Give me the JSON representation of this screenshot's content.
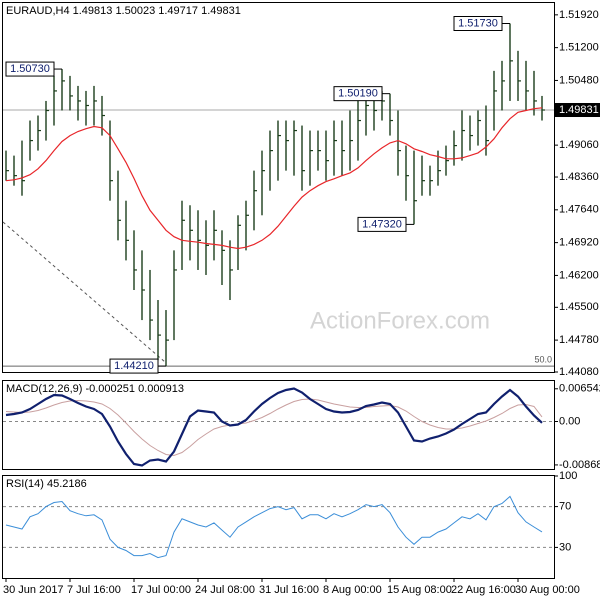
{
  "chart_data": [
    {
      "type": "ohlc",
      "title": "EURAUD,H4 1.49813 1.50023 1.49717 1.49831",
      "watermark": "ActionForex.com",
      "color": "#1b3d1b",
      "high": [
        1.4894,
        1.4883,
        1.4916,
        1.496,
        1.4971,
        1.5003,
        1.5058,
        1.5073,
        1.5058,
        1.5036,
        1.5025,
        1.5036,
        1.5014,
        1.496,
        1.485,
        1.4784,
        1.4719,
        1.4675,
        1.4632,
        1.4566,
        1.4544,
        1.4675,
        1.4784,
        1.4774,
        1.4763,
        1.4741,
        1.4763,
        1.4719,
        1.4697,
        1.4752,
        1.4784,
        1.485,
        1.4894,
        1.4938,
        1.496,
        1.496,
        1.496,
        1.4949,
        1.4938,
        1.4938,
        1.4938,
        1.496,
        1.496,
        1.4982,
        1.5003,
        1.5014,
        1.5014,
        1.5025,
        1.5019,
        1.4982,
        1.4905,
        1.4894,
        1.4883,
        1.4861,
        1.4894,
        1.4905,
        1.4938,
        1.4982,
        1.4971,
        1.4982,
        1.4993,
        1.5069,
        1.5091,
        1.5173,
        1.5113,
        1.5091,
        1.5069,
        1.5014
      ],
      "low": [
        1.4828,
        1.4817,
        1.4795,
        1.4872,
        1.4894,
        1.4916,
        1.4949,
        1.4982,
        1.4982,
        1.496,
        1.4949,
        1.4949,
        1.4927,
        1.4784,
        1.4697,
        1.4653,
        1.4588,
        1.4522,
        1.4478,
        1.4434,
        1.4421,
        1.4478,
        1.4632,
        1.4653,
        1.4632,
        1.4621,
        1.4653,
        1.4599,
        1.4566,
        1.4632,
        1.4675,
        1.4719,
        1.4752,
        1.4806,
        1.4828,
        1.485,
        1.4839,
        1.4806,
        1.4817,
        1.485,
        1.4828,
        1.4839,
        1.4839,
        1.485,
        1.4872,
        1.4927,
        1.4938,
        1.496,
        1.4927,
        1.4839,
        1.4784,
        1.4732,
        1.4795,
        1.4795,
        1.4817,
        1.4839,
        1.4861,
        1.4872,
        1.4894,
        1.4905,
        1.4883,
        1.4938,
        1.4982,
        1.5003,
        1.5003,
        1.4982,
        1.4971,
        1.496
      ],
      "close": [
        1.485,
        1.4839,
        1.4828,
        1.4916,
        1.4938,
        1.4982,
        1.5025,
        1.5047,
        1.5014,
        1.5003,
        1.4993,
        1.5003,
        1.4971,
        1.4828,
        1.4741,
        1.4697,
        1.4632,
        1.4588,
        1.4522,
        1.4489,
        1.4478,
        1.4632,
        1.4741,
        1.4719,
        1.4697,
        1.4686,
        1.4719,
        1.4675,
        1.4632,
        1.473,
        1.4752,
        1.4806,
        1.485,
        1.4894,
        1.4927,
        1.4916,
        1.4938,
        1.485,
        1.4894,
        1.4894,
        1.4872,
        1.4916,
        1.4894,
        1.4916,
        1.496,
        1.4993,
        1.4982,
        1.5003,
        1.496,
        1.4894,
        1.4839,
        1.4784,
        1.4828,
        1.4828,
        1.485,
        1.4872,
        1.4905,
        1.4938,
        1.4927,
        1.496,
        1.4916,
        1.5025,
        1.5047,
        1.5091,
        1.5047,
        1.5025,
        1.5003,
        1.49831
      ],
      "ma": {
        "color": "#e8262a",
        "values": [
          1.4828,
          1.483,
          1.4834,
          1.4841,
          1.4854,
          1.4872,
          1.4894,
          1.4914,
          1.4927,
          1.4936,
          1.4942,
          1.4947,
          1.4944,
          1.4927,
          1.4898,
          1.4868,
          1.4833,
          1.4795,
          1.4763,
          1.4741,
          1.4719,
          1.4705,
          1.4697,
          1.4695,
          1.4693,
          1.469,
          1.4688,
          1.4686,
          1.4682,
          1.4679,
          1.4682,
          1.4688,
          1.4697,
          1.471,
          1.4728,
          1.475,
          1.4772,
          1.4792,
          1.4806,
          1.4817,
          1.4826,
          1.4832,
          1.4839,
          1.4845,
          1.4856,
          1.4872,
          1.4887,
          1.49,
          1.4911,
          1.4916,
          1.4909,
          1.4898,
          1.4892,
          1.4885,
          1.4881,
          1.4876,
          1.4876,
          1.4878,
          1.4883,
          1.4889,
          1.4902,
          1.492,
          1.4944,
          1.4964,
          1.4978,
          1.4982,
          1.4986,
          1.4988
        ]
      },
      "last_price": 1.49831,
      "annotations": [
        {
          "label": "1.50730",
          "value": 1.5073
        },
        {
          "label": "1.44210",
          "value": 1.4421
        },
        {
          "label": "1.50190",
          "value": 1.5019
        },
        {
          "label": "1.47320",
          "value": 1.4732
        },
        {
          "label": "1.51730",
          "value": 1.5173
        }
      ],
      "fib": {
        "label": "50.0",
        "value": 1.4421
      },
      "ylim": [
        1.4408,
        1.5218
      ],
      "yticks": [
        {
          "value": 1.5192,
          "label": "1.51920"
        },
        {
          "value": 1.512,
          "label": "1.51200"
        },
        {
          "value": 1.5048,
          "label": "1.50480"
        },
        {
          "value": 1.4906,
          "label": "1.49060"
        },
        {
          "value": 1.4836,
          "label": "1.48360"
        },
        {
          "value": 1.4764,
          "label": "1.47640"
        },
        {
          "value": 1.4692,
          "label": "1.46920"
        },
        {
          "value": 1.462,
          "label": "1.46200"
        },
        {
          "value": 1.455,
          "label": "1.45500"
        },
        {
          "value": 1.4478,
          "label": "1.44780"
        },
        {
          "value": 1.4408,
          "label": "1.44080"
        }
      ]
    },
    {
      "type": "macd",
      "label": "MACD(12,26,9) -0.000251 0.000913",
      "macd": {
        "color": "#10206e",
        "values": [
          0.0013,
          0.0015,
          0.0018,
          0.0025,
          0.0035,
          0.0045,
          0.0053,
          0.0052,
          0.0045,
          0.0037,
          0.003,
          0.0025,
          0.0015,
          -0.001,
          -0.004,
          -0.0065,
          -0.0085,
          -0.0088,
          -0.0078,
          -0.0076,
          -0.008,
          -0.006,
          -0.0025,
          0.001,
          0.0022,
          0.002,
          0.0018,
          0.0,
          -0.0008,
          -0.0006,
          0.0003,
          0.002,
          0.0035,
          0.0047,
          0.0057,
          0.0063,
          0.0066,
          0.0058,
          0.0045,
          0.0035,
          0.0025,
          0.002,
          0.0018,
          0.0019,
          0.0023,
          0.0031,
          0.0034,
          0.0038,
          0.0035,
          0.0018,
          -0.001,
          -0.0038,
          -0.004,
          -0.0034,
          -0.003,
          -0.0024,
          -0.0016,
          -0.0005,
          0.0005,
          0.0015,
          0.0018,
          0.0035,
          0.005,
          0.0063,
          0.005,
          0.003,
          0.0012,
          -0.000251
        ]
      },
      "signal": {
        "color": "#c9a0a0",
        "values": [
          0.002,
          0.0019,
          0.0018,
          0.0019,
          0.0022,
          0.0027,
          0.0033,
          0.0038,
          0.0041,
          0.0042,
          0.0041,
          0.0039,
          0.0035,
          0.0026,
          0.0013,
          -0.0003,
          -0.002,
          -0.0035,
          -0.0048,
          -0.0058,
          -0.0066,
          -0.0068,
          -0.0062,
          -0.005,
          -0.0036,
          -0.0025,
          -0.0015,
          -0.001,
          -0.0007,
          -0.0005,
          -0.0003,
          0.0002,
          0.0008,
          0.0016,
          0.0025,
          0.0033,
          0.004,
          0.0044,
          0.0045,
          0.0043,
          0.0039,
          0.0035,
          0.0032,
          0.0029,
          0.0028,
          0.0028,
          0.003,
          0.0031,
          0.0032,
          0.0029,
          0.0021,
          0.001,
          0.0,
          -0.0007,
          -0.0012,
          -0.0015,
          -0.0015,
          -0.0013,
          -0.0009,
          -0.0004,
          0.0001,
          0.0008,
          0.0016,
          0.0026,
          0.0033,
          0.0034,
          0.003,
          0.000913
        ]
      },
      "levels": [
        0
      ],
      "ylim": [
        -0.0095,
        0.0081
      ],
      "yticks": [
        0.006542,
        {
          "value": 0,
          "label": "0.00"
        },
        -0.008684
      ]
    },
    {
      "type": "line",
      "label": "RSI(14) 45.2186",
      "color": "#3b8ed8",
      "values": [
        52,
        50,
        48,
        60,
        63,
        70,
        74,
        75,
        66,
        63,
        61,
        62,
        57,
        38,
        30,
        27,
        22,
        22,
        24,
        20,
        22,
        45,
        58,
        55,
        52,
        50,
        54,
        47,
        40,
        50,
        55,
        60,
        64,
        68,
        70,
        67,
        69,
        58,
        62,
        62,
        58,
        63,
        60,
        63,
        67,
        72,
        70,
        72,
        64,
        50,
        40,
        33,
        40,
        40,
        45,
        48,
        54,
        60,
        58,
        63,
        57,
        70,
        73,
        80,
        64,
        55,
        50,
        45.2186
      ],
      "levels": [
        70,
        30
      ],
      "ylim": [
        0,
        100
      ],
      "yticks": [
        100,
        70,
        30
      ],
      "categories": [
        "30 Jun 2017",
        null,
        null,
        null,
        null,
        null,
        null,
        null,
        "7 Jul 16:00",
        null,
        null,
        null,
        null,
        null,
        null,
        null,
        "17 Jul 00:00",
        null,
        null,
        null,
        null,
        null,
        null,
        null,
        "24 Jul 08:00",
        null,
        null,
        null,
        null,
        null,
        null,
        null,
        "31 Jul 16:00",
        null,
        null,
        null,
        null,
        null,
        null,
        null,
        "8 Aug 00:00",
        null,
        null,
        null,
        null,
        null,
        null,
        null,
        "15 Aug 08:00",
        null,
        null,
        null,
        null,
        null,
        null,
        null,
        "22 Aug 16:00",
        null,
        null,
        null,
        null,
        null,
        null,
        null,
        "30 Aug 00:00",
        null,
        null,
        null
      ]
    }
  ]
}
